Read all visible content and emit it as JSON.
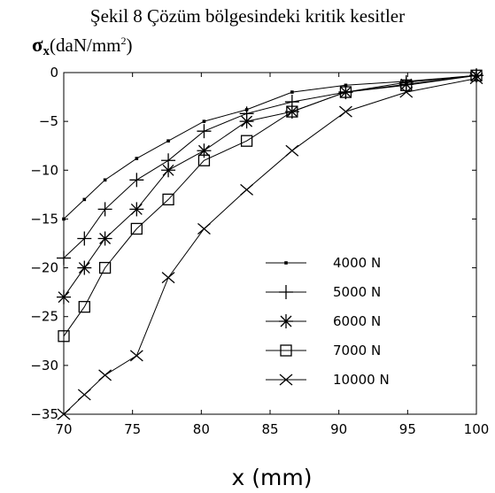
{
  "page": {
    "caption": "Şekil 8  Çözüm bölgesindeki kritik kesitler",
    "ylabel_symbol": "σ",
    "ylabel_sub": "x",
    "ylabel_unit_open": "(daN/mm",
    "ylabel_unit_sup": "2",
    "ylabel_unit_close": ")"
  },
  "chart_data": {
    "type": "line",
    "title": "Şekil 8  Çözüm bölgesindeki kritik kesitler",
    "xlabel": "x  (mm)",
    "ylabel": "σx(daN/mm2)",
    "xlim": [
      70,
      100
    ],
    "ylim": [
      -35,
      0
    ],
    "xticks": [
      70,
      75,
      80,
      85,
      90,
      95,
      100
    ],
    "yticks": [
      0,
      -5,
      -10,
      -15,
      -20,
      -25,
      -30,
      -35
    ],
    "grid": false,
    "legend_position": "center-right",
    "series": [
      {
        "name": "4000 N",
        "marker": "dot",
        "x": [
          70,
          71.5,
          73,
          75.3,
          77.6,
          80.2,
          83.3,
          86.6,
          90.5,
          94.9,
          100
        ],
        "y": [
          -15,
          -13,
          -11,
          -8.8,
          -7,
          -5,
          -3.8,
          -2.0,
          -1.3,
          -0.9,
          -0.3
        ]
      },
      {
        "name": "5000 N",
        "marker": "plus",
        "x": [
          70,
          71.5,
          73,
          75.3,
          77.6,
          80.2,
          83.3,
          86.6,
          90.5,
          94.9,
          100
        ],
        "y": [
          -19,
          -17,
          -14,
          -11,
          -9,
          -6,
          -4.2,
          -3.0,
          -2.0,
          -1.0,
          -0.3
        ]
      },
      {
        "name": "6000 N",
        "marker": "star",
        "x": [
          70,
          71.5,
          73,
          75.3,
          77.6,
          80.2,
          83.3,
          86.6,
          90.5,
          94.9,
          100
        ],
        "y": [
          -23,
          -20,
          -17,
          -14,
          -10,
          -8,
          -5,
          -4,
          -2,
          -1.2,
          -0.3
        ]
      },
      {
        "name": "7000 N",
        "marker": "square",
        "x": [
          70,
          71.5,
          73,
          75.3,
          77.6,
          80.2,
          83.3,
          86.6,
          90.5,
          94.9,
          100
        ],
        "y": [
          -27,
          -24,
          -20,
          -16,
          -13,
          -9,
          -7,
          -4,
          -2,
          -1.3,
          -0.3
        ]
      },
      {
        "name": "10000 N",
        "marker": "x",
        "x": [
          70,
          71.5,
          73,
          75.3,
          77.6,
          80.2,
          83.3,
          86.6,
          90.5,
          94.9,
          100
        ],
        "y": [
          -35,
          -33,
          -31,
          -29,
          -21,
          -16,
          -12,
          -8,
          -4,
          -2,
          -0.6
        ]
      }
    ]
  }
}
